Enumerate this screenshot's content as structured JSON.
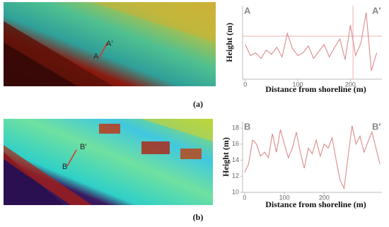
{
  "chart_data": [
    {
      "type": "line",
      "panel_label": "(a)",
      "start_label": "A",
      "end_label": "A′",
      "xlabel": "Distance from shoreline (m)",
      "ylabel": "Height (m)",
      "x": [
        0,
        10,
        20,
        30,
        40,
        50,
        60,
        70,
        80,
        90,
        100,
        110,
        120,
        130,
        140,
        150,
        160,
        170,
        180,
        190,
        200,
        210,
        220,
        230,
        240,
        250
      ],
      "values": [
        -2.0,
        -2.8,
        -2.6,
        -3.0,
        -2.4,
        -2.7,
        -2.2,
        -2.9,
        -1.2,
        -2.3,
        -2.8,
        -2.6,
        -2.1,
        -3.0,
        -2.5,
        -2.0,
        -2.9,
        -2.2,
        -1.6,
        -3.1,
        -0.6,
        -2.8,
        -1.9,
        0.3,
        -3.9,
        -2.6
      ],
      "color": "#d98c8c",
      "xlim": [
        -5,
        260
      ],
      "ylim": [
        -4.5,
        0.8
      ],
      "xticks": [
        0,
        100,
        200
      ],
      "reference_lines": {
        "x": 205,
        "y": -1.4
      }
    },
    {
      "type": "line",
      "panel_label": "(b)",
      "start_label": "B",
      "end_label": "B′",
      "xlabel": "Distance from shoreline (m)",
      "ylabel": "Height (m)",
      "x": [
        0,
        10,
        20,
        30,
        40,
        50,
        60,
        70,
        80,
        90,
        100,
        110,
        120,
        130,
        140,
        150,
        160,
        170,
        180,
        190,
        200,
        210,
        220,
        230,
        240,
        250,
        260,
        270,
        280,
        290,
        300,
        310,
        320,
        330,
        340
      ],
      "values": [
        12.5,
        13.5,
        16.5,
        16.0,
        14.5,
        15.0,
        14.3,
        17.3,
        15.0,
        17.8,
        16.0,
        14.3,
        15.5,
        17.5,
        15.0,
        13.0,
        15.5,
        14.8,
        16.5,
        14.5,
        16.0,
        15.5,
        16.8,
        14.0,
        11.5,
        10.5,
        14.5,
        18.3,
        16.0,
        17.0,
        15.0,
        16.3,
        17.5,
        15.5,
        13.5
      ],
      "color": "#d98c8c",
      "xlim": [
        -5,
        345
      ],
      "ylim": [
        10,
        18.8
      ],
      "xticks": [
        0,
        100,
        200
      ],
      "yticks": [
        10,
        12,
        14,
        16,
        18
      ]
    }
  ]
}
